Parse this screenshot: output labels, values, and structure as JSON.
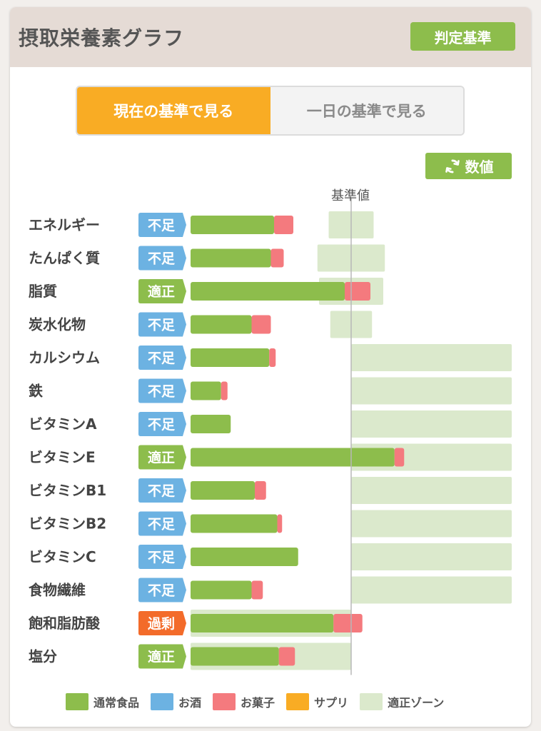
{
  "header": {
    "title": "摂取栄養素グラフ",
    "criteria_button": "判定基準"
  },
  "toggle": {
    "current_label": "現在の基準で見る",
    "daily_label": "一日の基準で見る"
  },
  "value_button": {
    "label": "数値",
    "icon": "refresh-icon"
  },
  "colors": {
    "normal_food": "#8dbd4c",
    "alcohol": "#6cb2e2",
    "snacks": "#f47a7e",
    "supplement": "#f9ac24",
    "adequate_zone": "#dbe9cc",
    "badge_insufficient": "#6cb2e2",
    "badge_adequate": "#8dbd4c",
    "badge_excess": "#f36b2a"
  },
  "chart_data": {
    "type": "bar",
    "orientation": "horizontal",
    "stacked": true,
    "reference_label": "基準値",
    "reference_value": 100,
    "x_scale_note": "percent of reference value",
    "series_order": [
      "normal_food",
      "snacks"
    ],
    "rows": [
      {
        "name": "エネルギー",
        "status": "不足",
        "status_type": "insufficient",
        "normal_food": 52,
        "snacks": 12,
        "zone": [
          86,
          114
        ]
      },
      {
        "name": "たんぱく質",
        "status": "不足",
        "status_type": "insufficient",
        "normal_food": 50,
        "snacks": 8,
        "zone": [
          79,
          121
        ]
      },
      {
        "name": "脂質",
        "status": "適正",
        "status_type": "adequate",
        "normal_food": 96,
        "snacks": 16,
        "zone": [
          80,
          120
        ]
      },
      {
        "name": "炭水化物",
        "status": "不足",
        "status_type": "insufficient",
        "normal_food": 38,
        "snacks": 12,
        "zone": [
          87,
          113
        ]
      },
      {
        "name": "カルシウム",
        "status": "不足",
        "status_type": "insufficient",
        "normal_food": 49,
        "snacks": 4,
        "zone": [
          100,
          200
        ]
      },
      {
        "name": "鉄",
        "status": "不足",
        "status_type": "insufficient",
        "normal_food": 19,
        "snacks": 4,
        "zone": [
          100,
          200
        ]
      },
      {
        "name": "ビタミンA",
        "status": "不足",
        "status_type": "insufficient",
        "normal_food": 25,
        "snacks": 0,
        "zone": [
          100,
          200
        ]
      },
      {
        "name": "ビタミンE",
        "status": "適正",
        "status_type": "adequate",
        "normal_food": 127,
        "snacks": 6,
        "zone": [
          100,
          200
        ]
      },
      {
        "name": "ビタミンB1",
        "status": "不足",
        "status_type": "insufficient",
        "normal_food": 40,
        "snacks": 7,
        "zone": [
          100,
          200
        ]
      },
      {
        "name": "ビタミンB2",
        "status": "不足",
        "status_type": "insufficient",
        "normal_food": 54,
        "snacks": 3,
        "zone": [
          100,
          200
        ]
      },
      {
        "name": "ビタミンC",
        "status": "不足",
        "status_type": "insufficient",
        "normal_food": 67,
        "snacks": 0,
        "zone": [
          100,
          200
        ]
      },
      {
        "name": "食物繊維",
        "status": "不足",
        "status_type": "insufficient",
        "normal_food": 38,
        "snacks": 7,
        "zone": [
          100,
          200
        ]
      },
      {
        "name": "飽和脂肪酸",
        "status": "過剰",
        "status_type": "excess",
        "normal_food": 89,
        "snacks": 18,
        "zone": [
          0,
          100
        ]
      },
      {
        "name": "塩分",
        "status": "適正",
        "status_type": "adequate",
        "normal_food": 55,
        "snacks": 10,
        "zone": [
          0,
          100
        ]
      }
    ]
  },
  "legend": [
    {
      "label": "通常食品",
      "color_key": "normal_food"
    },
    {
      "label": "お酒",
      "color_key": "alcohol"
    },
    {
      "label": "お菓子",
      "color_key": "snacks"
    },
    {
      "label": "サプリ",
      "color_key": "supplement"
    },
    {
      "label": "適正ゾーン",
      "color_key": "adequate_zone"
    }
  ]
}
